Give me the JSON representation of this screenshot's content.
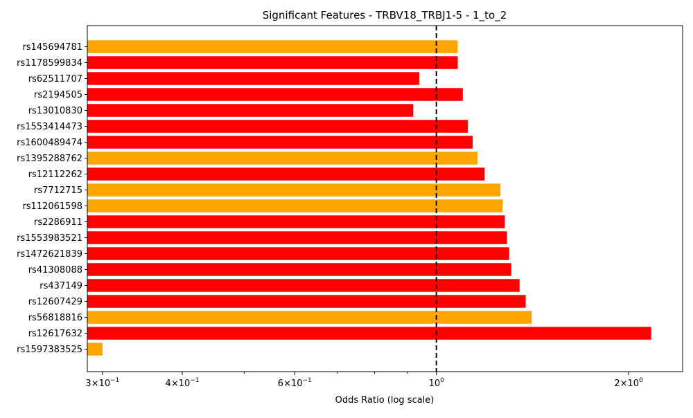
{
  "chart_data": {
    "type": "bar",
    "orientation": "horizontal",
    "title": "Significant Features - TRBV18_TRBJ1-5 - 1_to_2",
    "xlabel": "Odds Ratio (log scale)",
    "ylabel": "",
    "xscale": "log",
    "xlim": [
      0.284,
      2.43
    ],
    "reference_line": {
      "x": 1.0,
      "style": "dashed",
      "color": "#000000"
    },
    "x_ticks": [
      {
        "value": 0.3,
        "label": "3×10",
        "exp": "−1"
      },
      {
        "value": 0.4,
        "label": "4×10",
        "exp": "−1"
      },
      {
        "value": 0.6,
        "label": "6×10",
        "exp": "−1"
      },
      {
        "value": 1.0,
        "label": "10",
        "exp": "0"
      },
      {
        "value": 2.0,
        "label": "2×10",
        "exp": "0"
      }
    ],
    "x_minor_ticks": [
      0.5,
      0.7,
      0.8,
      0.9
    ],
    "colors": {
      "red": "#ff0000",
      "orange": "#ffa500"
    },
    "bars": [
      {
        "label": "rs145694781",
        "value": 1.08,
        "color": "orange"
      },
      {
        "label": "rs1178599834",
        "value": 1.08,
        "color": "red"
      },
      {
        "label": "rs62511707",
        "value": 0.94,
        "color": "red"
      },
      {
        "label": "rs2194505",
        "value": 1.1,
        "color": "red"
      },
      {
        "label": "rs13010830",
        "value": 0.92,
        "color": "red"
      },
      {
        "label": "rs1553414473",
        "value": 1.12,
        "color": "red"
      },
      {
        "label": "rs1600489474",
        "value": 1.14,
        "color": "red"
      },
      {
        "label": "rs1395288762",
        "value": 1.16,
        "color": "orange"
      },
      {
        "label": "rs12112262",
        "value": 1.19,
        "color": "red"
      },
      {
        "label": "rs7712715",
        "value": 1.26,
        "color": "orange"
      },
      {
        "label": "rs112061598",
        "value": 1.27,
        "color": "orange"
      },
      {
        "label": "rs2286911",
        "value": 1.28,
        "color": "red"
      },
      {
        "label": "rs1553983521",
        "value": 1.29,
        "color": "red"
      },
      {
        "label": "rs1472621839",
        "value": 1.3,
        "color": "red"
      },
      {
        "label": "rs41308088",
        "value": 1.31,
        "color": "red"
      },
      {
        "label": "rs437149",
        "value": 1.35,
        "color": "red"
      },
      {
        "label": "rs12607429",
        "value": 1.38,
        "color": "red"
      },
      {
        "label": "rs56818816",
        "value": 1.41,
        "color": "orange"
      },
      {
        "label": "rs12617632",
        "value": 2.17,
        "color": "red"
      },
      {
        "label": "rs1597383525",
        "value": 0.3,
        "color": "orange"
      }
    ]
  }
}
